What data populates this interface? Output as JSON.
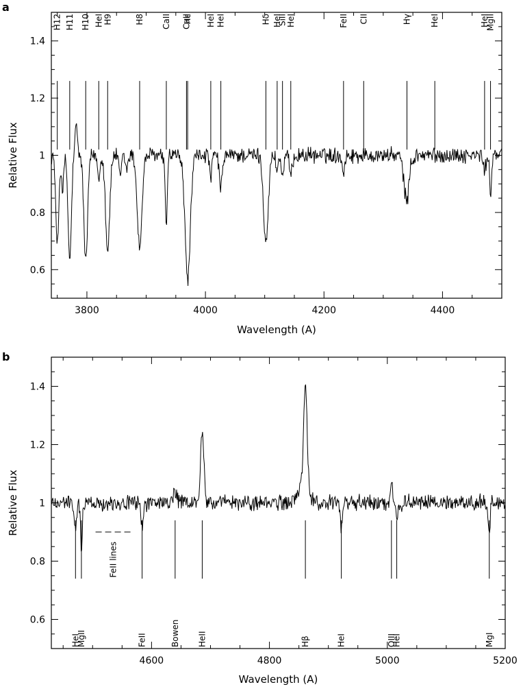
{
  "chart_data": [
    {
      "panel": "a",
      "type": "line",
      "xlabel": "Wavelength (A)",
      "ylabel": "Relative Flux",
      "xlim": [
        3740,
        4500
      ],
      "ylim": [
        0.5,
        1.5
      ],
      "xticks": [
        3800,
        4000,
        4200,
        4400
      ],
      "yticks": [
        0.6,
        0.8,
        1,
        1.2,
        1.4
      ],
      "xtick_labels": [
        "3800",
        "4000",
        "4200",
        "4400"
      ],
      "ytick_labels": [
        "0.6",
        "0.8",
        "1",
        "1.2",
        "1.4"
      ],
      "line_identifications": [
        {
          "label": "H12",
          "x": 3750,
          "tick_from": 1.26,
          "tick_to": 1.02
        },
        {
          "label": "H11",
          "x": 3771,
          "tick_from": 1.26,
          "tick_to": 1.02
        },
        {
          "label": "H10",
          "x": 3798,
          "tick_from": 1.26,
          "tick_to": 1.02
        },
        {
          "label": "HeI",
          "x": 3820,
          "tick_from": 1.26,
          "tick_to": 1.02
        },
        {
          "label": "H9",
          "x": 3835,
          "tick_from": 1.26,
          "tick_to": 1.02
        },
        {
          "label": "H8",
          "x": 3889,
          "tick_from": 1.26,
          "tick_to": 1.02
        },
        {
          "label": "CaII",
          "x": 3934,
          "tick_from": 1.26,
          "tick_to": 1.02
        },
        {
          "label": "CaII",
          "x": 3968,
          "tick_from": 1.26,
          "tick_to": 1.02
        },
        {
          "label": "Hε",
          "x": 3970,
          "tick_from": 1.26,
          "tick_to": 1.02
        },
        {
          "label": "HeI",
          "x": 4009,
          "tick_from": 1.26,
          "tick_to": 1.02
        },
        {
          "label": "HeI",
          "x": 4026,
          "tick_from": 1.26,
          "tick_to": 1.02
        },
        {
          "label": "Hδ",
          "x": 4102,
          "tick_from": 1.26,
          "tick_to": 1.02
        },
        {
          "label": "HeI",
          "x": 4121,
          "tick_from": 1.26,
          "tick_to": 1.02
        },
        {
          "label": "SiII",
          "x": 4130,
          "tick_from": 1.26,
          "tick_to": 1.02
        },
        {
          "label": "HeI",
          "x": 4144,
          "tick_from": 1.26,
          "tick_to": 1.02
        },
        {
          "label": "FeII",
          "x": 4233,
          "tick_from": 1.26,
          "tick_to": 1.02
        },
        {
          "label": "CII",
          "x": 4267,
          "tick_from": 1.26,
          "tick_to": 1.02
        },
        {
          "label": "Hγ",
          "x": 4340,
          "tick_from": 1.26,
          "tick_to": 1.02
        },
        {
          "label": "HeI",
          "x": 4387,
          "tick_from": 1.26,
          "tick_to": 1.02
        },
        {
          "label": "HeI",
          "x": 4471,
          "tick_from": 1.26,
          "tick_to": 1.02
        },
        {
          "label": "MgII",
          "x": 4481,
          "tick_from": 1.26,
          "tick_to": 1.02
        }
      ],
      "spectrum": {
        "continuum": 1.0,
        "absorption_features": [
          {
            "x": 3750,
            "depth": 0.32,
            "width": 2.5
          },
          {
            "x": 3759,
            "depth": 0.12,
            "width": 2.0
          },
          {
            "x": 3771,
            "depth": 0.37,
            "width": 2.8
          },
          {
            "x": 3798,
            "depth": 0.37,
            "width": 3.2
          },
          {
            "x": 3820,
            "depth": 0.08,
            "width": 2.0
          },
          {
            "x": 3835,
            "depth": 0.33,
            "width": 3.5
          },
          {
            "x": 3856,
            "depth": 0.08,
            "width": 2.0
          },
          {
            "x": 3867,
            "depth": 0.05,
            "width": 2.0
          },
          {
            "x": 3889,
            "depth": 0.32,
            "width": 4.0
          },
          {
            "x": 3934,
            "depth": 0.25,
            "width": 2.0
          },
          {
            "x": 3970,
            "depth": 0.43,
            "width": 4.5
          },
          {
            "x": 4009,
            "depth": 0.08,
            "width": 2.0
          },
          {
            "x": 4026,
            "depth": 0.12,
            "width": 2.5
          },
          {
            "x": 4102,
            "depth": 0.3,
            "width": 4.0
          },
          {
            "x": 4121,
            "depth": 0.05,
            "width": 2.0
          },
          {
            "x": 4130,
            "depth": 0.08,
            "width": 2.0
          },
          {
            "x": 4144,
            "depth": 0.07,
            "width": 2.5
          },
          {
            "x": 4233,
            "depth": 0.06,
            "width": 2.0
          },
          {
            "x": 4340,
            "depth": 0.16,
            "width": 5.0
          },
          {
            "x": 4471,
            "depth": 0.06,
            "width": 2.0
          },
          {
            "x": 4481,
            "depth": 0.15,
            "width": 1.5
          }
        ],
        "emission_features": [
          {
            "x": 3782,
            "height": 0.1,
            "width": 2.0
          },
          {
            "x": 3936,
            "height": 0.03,
            "width": 2.0
          },
          {
            "x": 4345,
            "height": 0.04,
            "width": 2.0
          }
        ]
      }
    },
    {
      "panel": "b",
      "type": "line",
      "xlabel": "Wavelength (A)",
      "ylabel": "Relative Flux",
      "xlim": [
        4430,
        5200
      ],
      "ylim": [
        0.5,
        1.5
      ],
      "xticks": [
        4600,
        4800,
        5000,
        5200
      ],
      "yticks": [
        0.6,
        0.8,
        1,
        1.2,
        1.4
      ],
      "xtick_labels": [
        "4600",
        "4800",
        "5000",
        "5200"
      ],
      "ytick_labels": [
        "0.6",
        "0.8",
        "1",
        "1.2",
        "1.4"
      ],
      "line_identifications": [
        {
          "label": "HeI",
          "x": 4471,
          "tick_from": 0.94,
          "tick_to": 0.74
        },
        {
          "label": "MgII",
          "x": 4481,
          "tick_from": 0.94,
          "tick_to": 0.74
        },
        {
          "label": "FeII",
          "x": 4584,
          "tick_from": 0.94,
          "tick_to": 0.74
        },
        {
          "label": "Bowen",
          "x": 4640,
          "tick_from": 0.94,
          "tick_to": 0.74
        },
        {
          "label": "HeII",
          "x": 4686,
          "tick_from": 0.94,
          "tick_to": 0.74
        },
        {
          "label": "Hβ",
          "x": 4861,
          "tick_from": 0.94,
          "tick_to": 0.74
        },
        {
          "label": "HeI",
          "x": 4922,
          "tick_from": 0.94,
          "tick_to": 0.74
        },
        {
          "label": "OIII",
          "x": 5007,
          "tick_from": 0.94,
          "tick_to": 0.74
        },
        {
          "label": "HeI",
          "x": 5016,
          "tick_from": 0.94,
          "tick_to": 0.74
        },
        {
          "label": "MgI",
          "x": 5173,
          "tick_from": 0.94,
          "tick_to": 0.74
        }
      ],
      "annotation": {
        "label": "FeII lines",
        "x_range": [
          4505,
          4565
        ],
        "y": 0.9
      },
      "spectrum": {
        "continuum": 1.0,
        "absorption_features": [
          {
            "x": 4471,
            "depth": 0.1,
            "width": 2.0
          },
          {
            "x": 4481,
            "depth": 0.15,
            "width": 1.5
          },
          {
            "x": 4584,
            "depth": 0.08,
            "width": 2.0
          },
          {
            "x": 4922,
            "depth": 0.08,
            "width": 2.0
          },
          {
            "x": 5016,
            "depth": 0.05,
            "width": 2.0
          },
          {
            "x": 5173,
            "depth": 0.1,
            "width": 1.5
          }
        ],
        "emission_features": [
          {
            "x": 4686,
            "height": 0.25,
            "width": 2.8
          },
          {
            "x": 4861,
            "height": 0.35,
            "width": 3.0
          },
          {
            "x": 4857,
            "height": 0.06,
            "width": 8.0
          },
          {
            "x": 5007,
            "height": 0.09,
            "width": 1.5
          },
          {
            "x": 4640,
            "height": 0.04,
            "width": 3.0
          }
        ]
      }
    }
  ]
}
